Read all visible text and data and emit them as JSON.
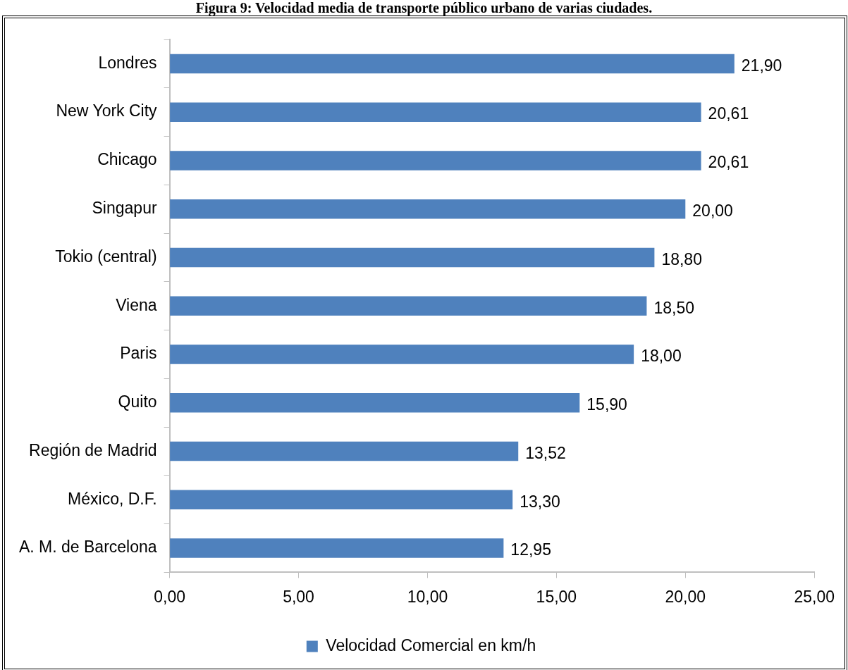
{
  "chart_data": {
    "type": "bar",
    "orientation": "horizontal",
    "title": "Figura 9: Velocidad media de transporte público urbano de varias ciudades.",
    "categories": [
      "Londres",
      "New York City",
      "Chicago",
      "Singapur",
      "Tokio (central)",
      "Viena",
      "Paris",
      "Quito",
      "Región de Madrid",
      "México, D.F.",
      "A. M. de Barcelona"
    ],
    "series": [
      {
        "name": "Velocidad Comercial en km/h",
        "color": "#4f81bd",
        "values": [
          21.9,
          20.61,
          20.61,
          20.0,
          18.8,
          18.5,
          18.0,
          15.9,
          13.52,
          13.3,
          12.95
        ],
        "value_labels": [
          "21,90",
          "20,61",
          "20,61",
          "20,00",
          "18,80",
          "18,50",
          "18,00",
          "15,90",
          "13,52",
          "13,30",
          "12,95"
        ]
      }
    ],
    "xlim": [
      0,
      25
    ],
    "xticks": [
      {
        "value": 0,
        "label": "0,00"
      },
      {
        "value": 5,
        "label": "5,00"
      },
      {
        "value": 10,
        "label": "10,00"
      },
      {
        "value": 15,
        "label": "15,00"
      },
      {
        "value": 20,
        "label": "20,00"
      },
      {
        "value": 25,
        "label": "25,00"
      }
    ],
    "grid": false,
    "legend": "bottom"
  }
}
